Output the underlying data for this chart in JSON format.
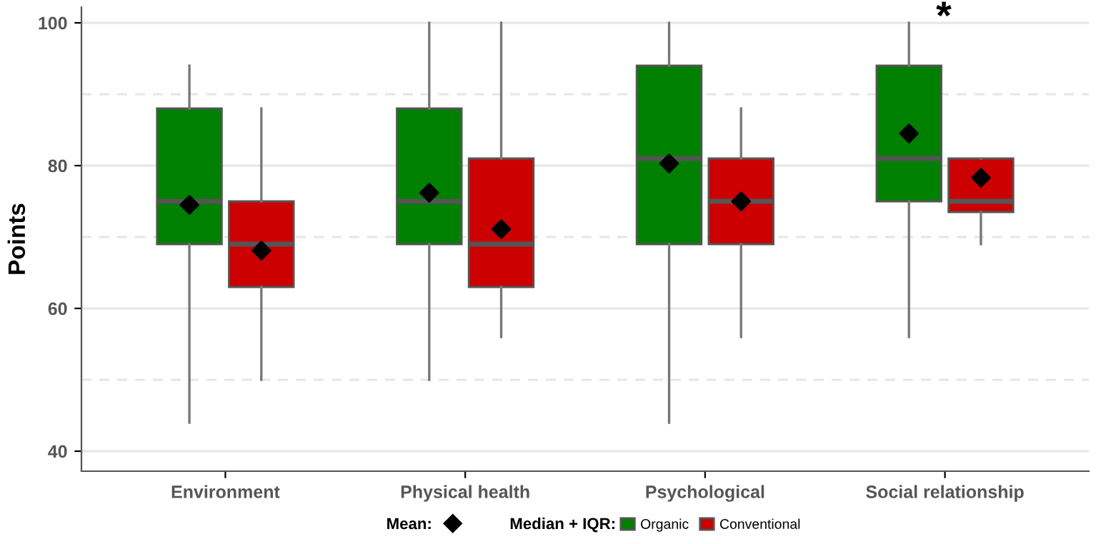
{
  "chart_data": {
    "type": "box",
    "ylabel": "Points",
    "categories": [
      "Environment",
      "Physical health",
      "Psychological",
      "Social relationship"
    ],
    "series": [
      {
        "name": "Organic",
        "color": "#008000",
        "boxes": [
          {
            "low": 44,
            "q1": 69,
            "median": 75,
            "q3": 88,
            "high": 94,
            "mean": 74.5
          },
          {
            "low": 50,
            "q1": 69,
            "median": 75,
            "q3": 88,
            "high": 100,
            "mean": 76.2
          },
          {
            "low": 44,
            "q1": 69,
            "median": 81,
            "q3": 94,
            "high": 100,
            "mean": 80.3
          },
          {
            "low": 56,
            "q1": 75,
            "median": 81,
            "q3": 94,
            "high": 100,
            "mean": 84.5
          }
        ]
      },
      {
        "name": "Conventional",
        "color": "#cc0000",
        "boxes": [
          {
            "low": 50,
            "q1": 63,
            "median": 69,
            "q3": 75,
            "high": 88,
            "mean": 68.1
          },
          {
            "low": 56,
            "q1": 63,
            "median": 69,
            "q3": 81,
            "high": 100,
            "mean": 71.1
          },
          {
            "low": 56,
            "q1": 69,
            "median": 75,
            "q3": 81,
            "high": 88,
            "mean": 75
          },
          {
            "low": 69,
            "q1": 73.5,
            "median": 75,
            "q3": 81,
            "high": 81,
            "mean": 78.3
          }
        ]
      }
    ],
    "ylim": [
      37.2,
      102.2
    ],
    "yticks": [
      40,
      60,
      80,
      100
    ],
    "grid": "y",
    "ref_lines": [
      {
        "axis": "y",
        "value": 50,
        "color": "#e6e6e6",
        "line_style": "dashed"
      },
      {
        "axis": "y",
        "value": 70,
        "color": "#e6e6e6",
        "line_style": "dashed"
      },
      {
        "axis": "y",
        "value": 90,
        "color": "#e6e6e6",
        "line_style": "dashed"
      }
    ],
    "marker": "diamond",
    "legend": "bottom",
    "legend_title": "Median + IQR:",
    "annotations": [
      "*",
      "Mean:"
    ]
  }
}
